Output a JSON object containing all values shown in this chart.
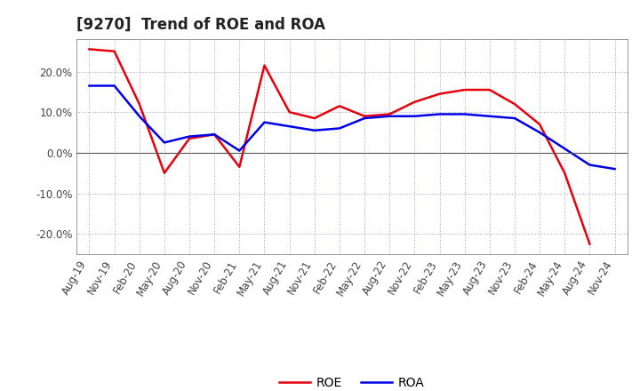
{
  "title": "[9270]  Trend of ROE and ROA",
  "x_labels": [
    "Aug-19",
    "Nov-19",
    "Feb-20",
    "May-20",
    "Aug-20",
    "Nov-20",
    "Feb-21",
    "May-21",
    "Aug-21",
    "Nov-21",
    "Feb-22",
    "May-22",
    "Aug-22",
    "Nov-22",
    "Feb-23",
    "May-23",
    "Aug-23",
    "Nov-23",
    "Feb-24",
    "May-24",
    "Aug-24",
    "Nov-24"
  ],
  "roe": [
    25.5,
    25.0,
    12.0,
    -5.0,
    3.5,
    4.5,
    -3.5,
    21.5,
    10.0,
    8.5,
    11.5,
    9.0,
    9.5,
    12.5,
    14.5,
    15.5,
    15.5,
    12.0,
    7.0,
    -5.0,
    -22.5,
    null
  ],
  "roa": [
    16.5,
    16.5,
    9.0,
    2.5,
    4.0,
    4.5,
    0.5,
    7.5,
    6.5,
    5.5,
    6.0,
    8.5,
    9.0,
    9.0,
    9.5,
    9.5,
    9.0,
    8.5,
    5.0,
    1.0,
    -3.0,
    -4.0
  ],
  "roe_color": "#e8000d",
  "roa_color": "#0000e8",
  "ylim": [
    -25,
    28
  ],
  "yticks": [
    -20,
    -10,
    0,
    10,
    20
  ],
  "background_color": "#ffffff",
  "plot_background": "#ffffff",
  "grid_color": "#9999bb",
  "title_fontsize": 12,
  "tick_fontsize": 8.5,
  "legend_fontsize": 10
}
